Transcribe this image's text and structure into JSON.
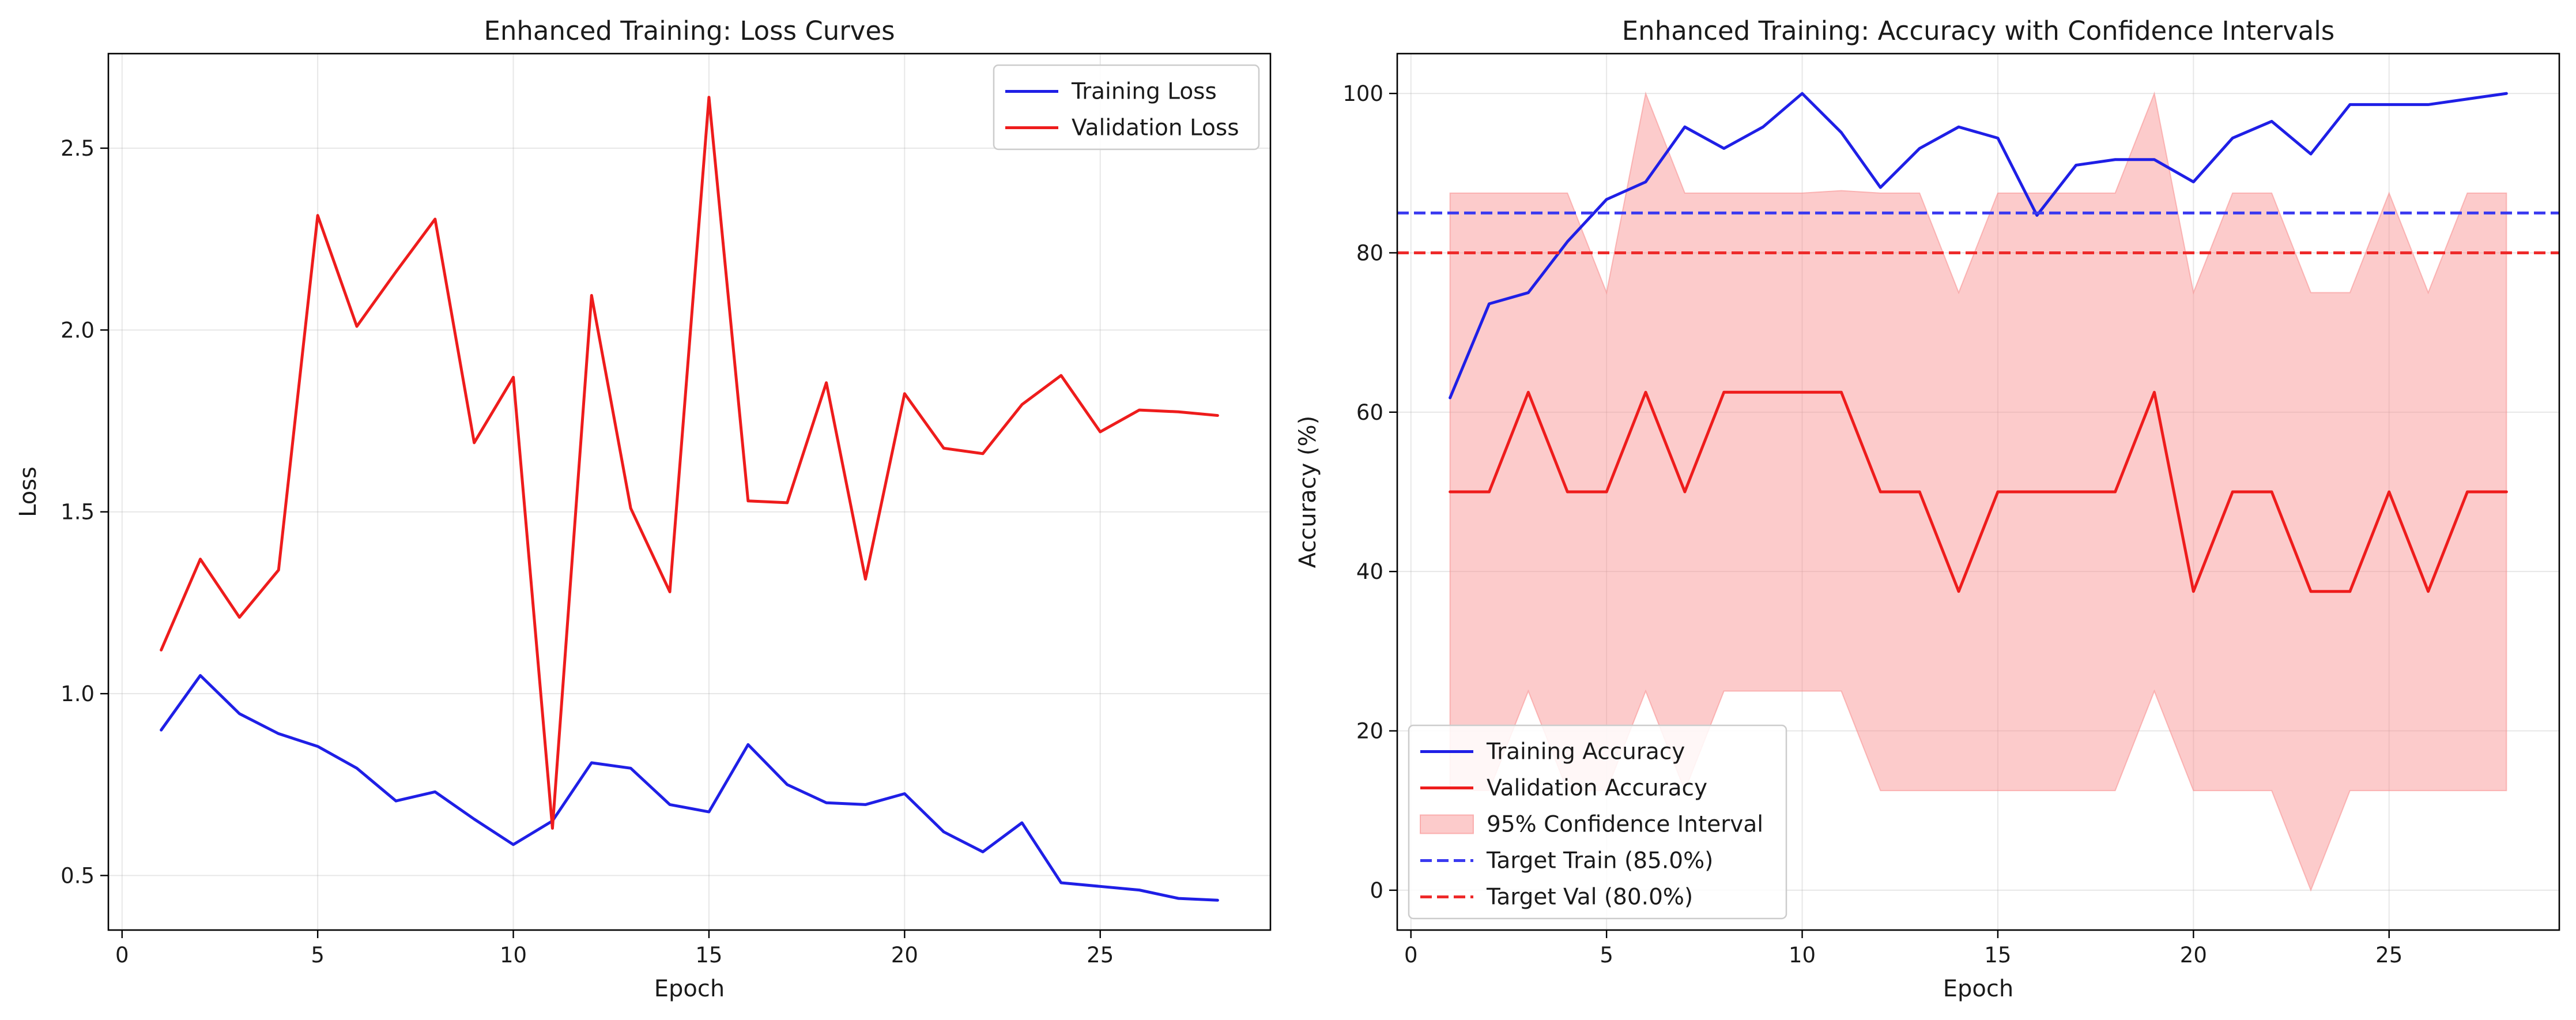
{
  "chart_data": [
    {
      "type": "line",
      "title": "Enhanced Training: Loss Curves",
      "xlabel": "Epoch",
      "ylabel": "Loss",
      "xlim": [
        -0.35,
        29.35
      ],
      "ylim": [
        0.35,
        2.76
      ],
      "xticks": [
        0,
        5,
        10,
        15,
        20,
        25
      ],
      "yticks": [
        0.5,
        1.0,
        1.5,
        2.0,
        2.5
      ],
      "ytick_labels": [
        "0.5",
        "1.0",
        "1.5",
        "2.0",
        "2.5"
      ],
      "grid": true,
      "legend_position": "upper right",
      "x": [
        1,
        2,
        3,
        4,
        5,
        6,
        7,
        8,
        9,
        10,
        11,
        12,
        13,
        14,
        15,
        16,
        17,
        18,
        19,
        20,
        21,
        22,
        23,
        24,
        25,
        26,
        27,
        28
      ],
      "series": [
        {
          "name": "Training Loss",
          "color": "#1f1fe6",
          "values": [
            0.9,
            1.05,
            0.945,
            0.89,
            0.855,
            0.795,
            0.705,
            0.73,
            0.655,
            0.585,
            0.65,
            0.81,
            0.795,
            0.695,
            0.675,
            0.86,
            0.75,
            0.7,
            0.695,
            0.725,
            0.62,
            0.565,
            0.645,
            0.48,
            0.47,
            0.46,
            0.437,
            0.432
          ]
        },
        {
          "name": "Validation Loss",
          "color": "#ee1c1c",
          "values": [
            1.12,
            1.37,
            1.21,
            1.34,
            2.315,
            2.01,
            2.16,
            2.305,
            1.69,
            1.87,
            0.63,
            2.095,
            1.51,
            1.28,
            2.64,
            1.53,
            1.525,
            1.855,
            1.315,
            1.825,
            1.675,
            1.66,
            1.795,
            1.875,
            1.72,
            1.78,
            1.775,
            1.765
          ]
        }
      ]
    },
    {
      "type": "line",
      "title": "Enhanced Training: Accuracy with Confidence Intervals",
      "xlabel": "Epoch",
      "ylabel": "Accuracy (%)",
      "xlim": [
        -0.35,
        29.35
      ],
      "ylim": [
        -5,
        105
      ],
      "xticks": [
        0,
        5,
        10,
        15,
        20,
        25
      ],
      "yticks": [
        0,
        20,
        40,
        60,
        80,
        100
      ],
      "ytick_labels": [
        "0",
        "20",
        "40",
        "60",
        "80",
        "100"
      ],
      "grid": true,
      "legend_position": "lower left",
      "x": [
        1,
        2,
        3,
        4,
        5,
        6,
        7,
        8,
        9,
        10,
        11,
        12,
        13,
        14,
        15,
        16,
        17,
        18,
        19,
        20,
        21,
        22,
        23,
        24,
        25,
        26,
        27,
        28
      ],
      "series": [
        {
          "name": "Training Accuracy",
          "color": "#1f1fe6",
          "values": [
            61.8,
            73.6,
            75.0,
            81.4,
            86.7,
            88.9,
            95.8,
            93.1,
            95.8,
            100,
            95.1,
            88.2,
            93.1,
            95.8,
            94.4,
            84.7,
            91.0,
            91.7,
            91.7,
            88.9,
            94.4,
            96.5,
            92.4,
            98.6,
            98.6,
            98.6,
            99.3,
            100
          ]
        },
        {
          "name": "Validation Accuracy",
          "color": "#ee1c1c",
          "values": [
            50,
            50,
            62.5,
            50,
            50,
            62.5,
            50,
            62.5,
            62.5,
            62.5,
            62.5,
            50,
            50,
            37.5,
            50,
            50,
            50,
            50,
            62.5,
            37.5,
            50,
            50,
            37.5,
            37.5,
            50,
            37.5,
            50,
            50
          ]
        }
      ],
      "confidence_interval": {
        "name": "95% Confidence Interval",
        "color": "#f88c8c",
        "upper": [
          87.5,
          87.5,
          87.5,
          87.5,
          75,
          100,
          87.5,
          87.5,
          87.5,
          87.5,
          87.8,
          87.5,
          87.5,
          75,
          87.5,
          87.5,
          87.5,
          87.5,
          100,
          75,
          87.5,
          87.5,
          75,
          75,
          87.5,
          75,
          87.5,
          87.5
        ],
        "lower": [
          12.5,
          12.5,
          25,
          12.5,
          12.5,
          25,
          12.5,
          25,
          25,
          25,
          25,
          12.5,
          12.5,
          12.5,
          12.5,
          12.5,
          12.5,
          12.5,
          25,
          12.5,
          12.5,
          12.5,
          0,
          12.5,
          12.5,
          12.5,
          12.5,
          12.5
        ]
      },
      "reference_lines": [
        {
          "name": "Target Train (85.0%)",
          "value": 85,
          "color": "#3a3af0"
        },
        {
          "name": "Target Val (80.0%)",
          "value": 80,
          "color": "#ee2a2a"
        }
      ]
    }
  ]
}
